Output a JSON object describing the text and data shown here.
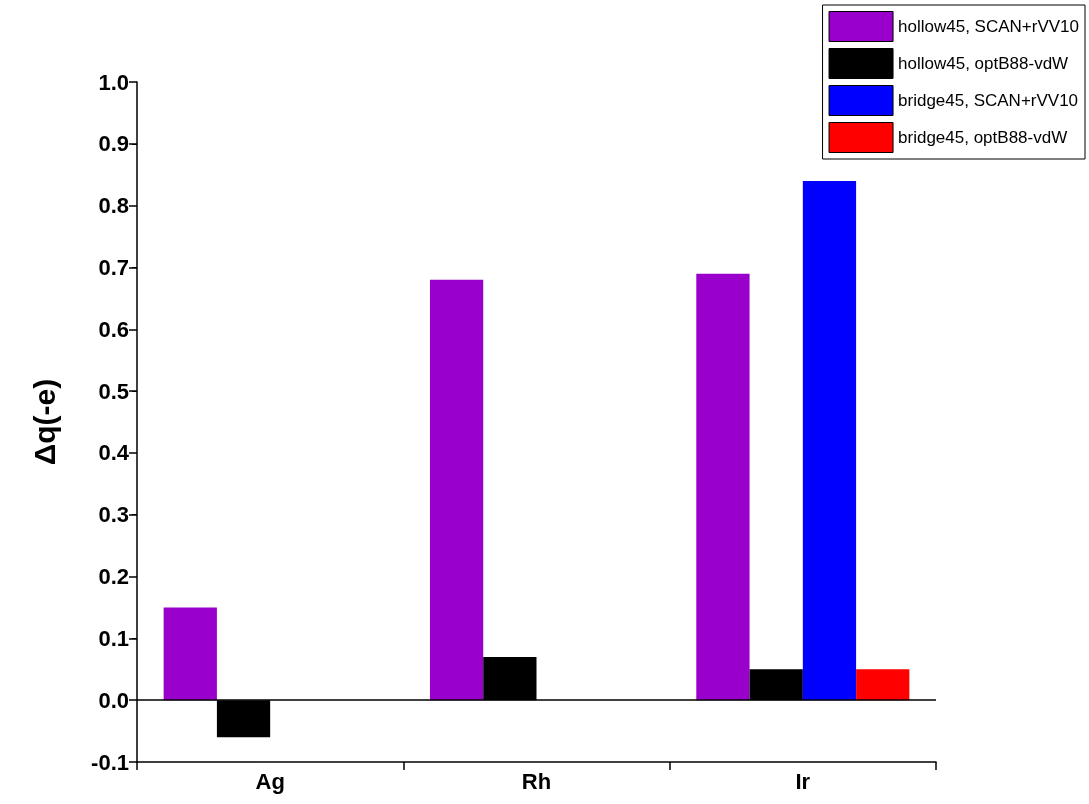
{
  "chart_data": {
    "type": "bar",
    "ylabel": "Δq(-e)",
    "categories": [
      "Ag",
      "Rh",
      "Ir"
    ],
    "series": [
      {
        "name": "hollow45, SCAN+rVV10",
        "color": "#9900cc",
        "values": [
          0.15,
          0.68,
          0.69
        ]
      },
      {
        "name": "hollow45, optB88-vdW",
        "color": "#000000",
        "values": [
          -0.06,
          0.07,
          0.05
        ]
      },
      {
        "name": "bridge45, SCAN+rVV10",
        "color": "#0000ff",
        "values": [
          null,
          null,
          0.84
        ]
      },
      {
        "name": "bridge45, optB88-vdW",
        "color": "#ff0000",
        "values": [
          null,
          null,
          0.05
        ]
      }
    ],
    "ylim": [
      -0.1,
      1.0
    ],
    "yticks": [
      {
        "value": -0.1,
        "label": "-0.1"
      },
      {
        "value": 0,
        "label": "0.0"
      },
      {
        "value": 0.1,
        "label": "0.1"
      },
      {
        "value": 0.2,
        "label": "0.2"
      },
      {
        "value": 0.3,
        "label": "0.3"
      },
      {
        "value": 0.4,
        "label": "0.4"
      },
      {
        "value": 0.5,
        "label": "0.5"
      },
      {
        "value": 0.6,
        "label": "0.6"
      },
      {
        "value": 0.7,
        "label": "0.7"
      },
      {
        "value": 0.8,
        "label": "0.8"
      },
      {
        "value": 0.9,
        "label": "0.9"
      },
      {
        "value": 1.0,
        "label": "1.0"
      }
    ],
    "ref_lines": [
      {
        "axis": "y",
        "value": 0,
        "color": "#000000"
      }
    ],
    "grid": false,
    "legend": "top right"
  }
}
